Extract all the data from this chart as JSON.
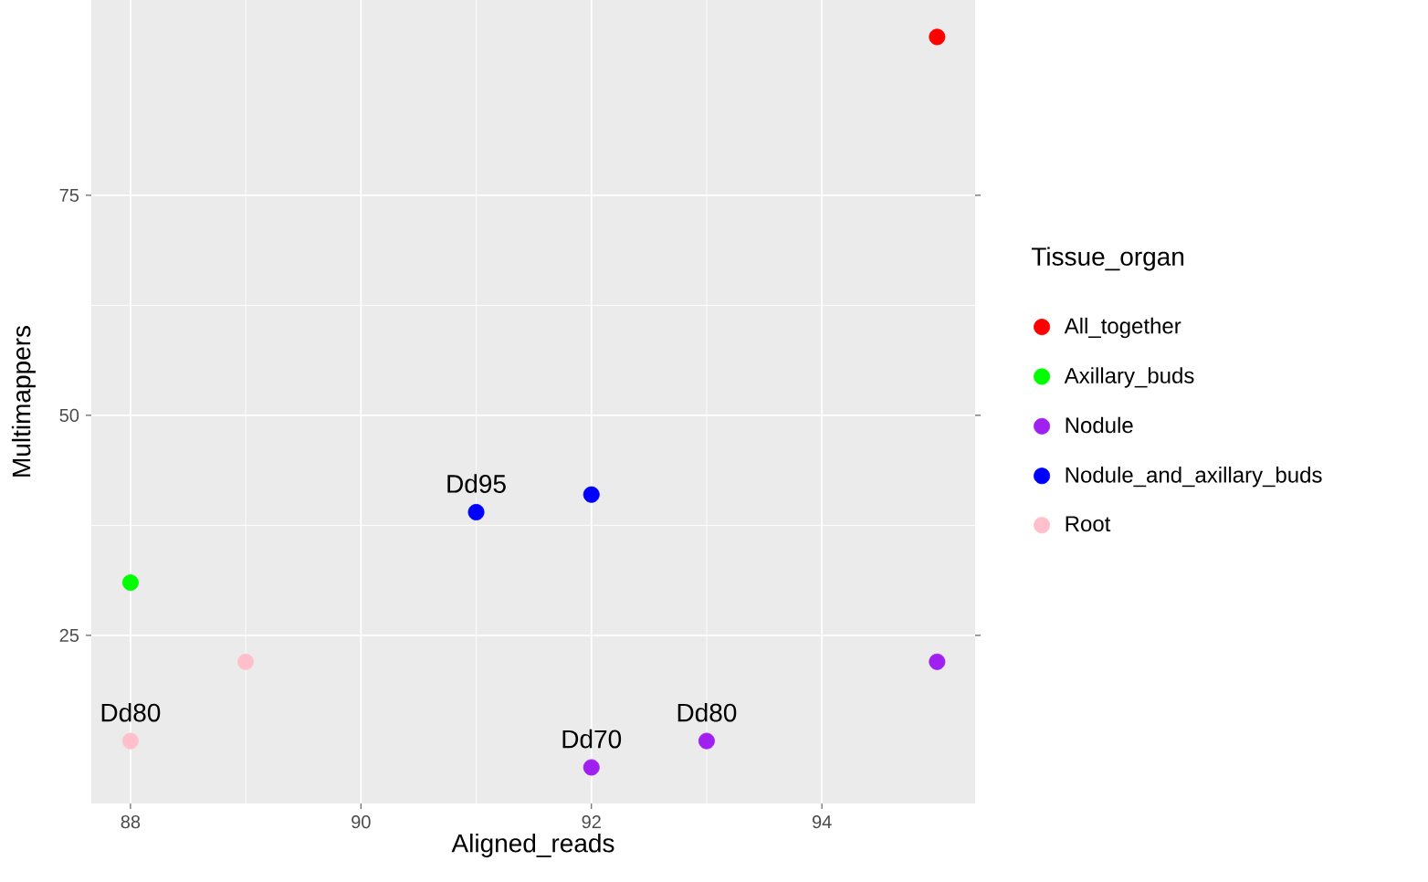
{
  "chart_data": {
    "type": "scatter",
    "xlabel": "Aligned_reads",
    "ylabel": "Multimappers",
    "legend_title": "Tissue_organ",
    "series": [
      {
        "name": "All_together",
        "color": "#ff0000",
        "x": [
          95
        ],
        "values": [
          93
        ]
      },
      {
        "name": "Axillary_buds",
        "color": "#00ff00",
        "x": [
          88
        ],
        "values": [
          31
        ]
      },
      {
        "name": "Nodule",
        "color": "#a020f0",
        "x": [
          92,
          93,
          95
        ],
        "values": [
          10,
          13,
          22
        ]
      },
      {
        "name": "Nodule_and_axillary_buds",
        "color": "#0000ff",
        "x": [
          91,
          92
        ],
        "values": [
          39,
          41
        ]
      },
      {
        "name": "Root",
        "color": "#ffc0cb",
        "x": [
          88,
          89
        ],
        "values": [
          13,
          22
        ]
      }
    ],
    "annotations": [
      {
        "text": "Dd95",
        "x": 91,
        "y": 39
      },
      {
        "text": "Dd80",
        "x": 88,
        "y": 13
      },
      {
        "text": "Dd70",
        "x": 92,
        "y": 10
      },
      {
        "text": "Dd80",
        "x": 93,
        "y": 13
      }
    ],
    "xlim": [
      87.66,
      95.33
    ],
    "ylim": [
      5.9,
      97.2
    ],
    "xticks": [
      88,
      90,
      92,
      94
    ],
    "yticks": [
      25,
      50,
      75
    ],
    "grid": true,
    "legend": "right",
    "marker": "circle"
  }
}
